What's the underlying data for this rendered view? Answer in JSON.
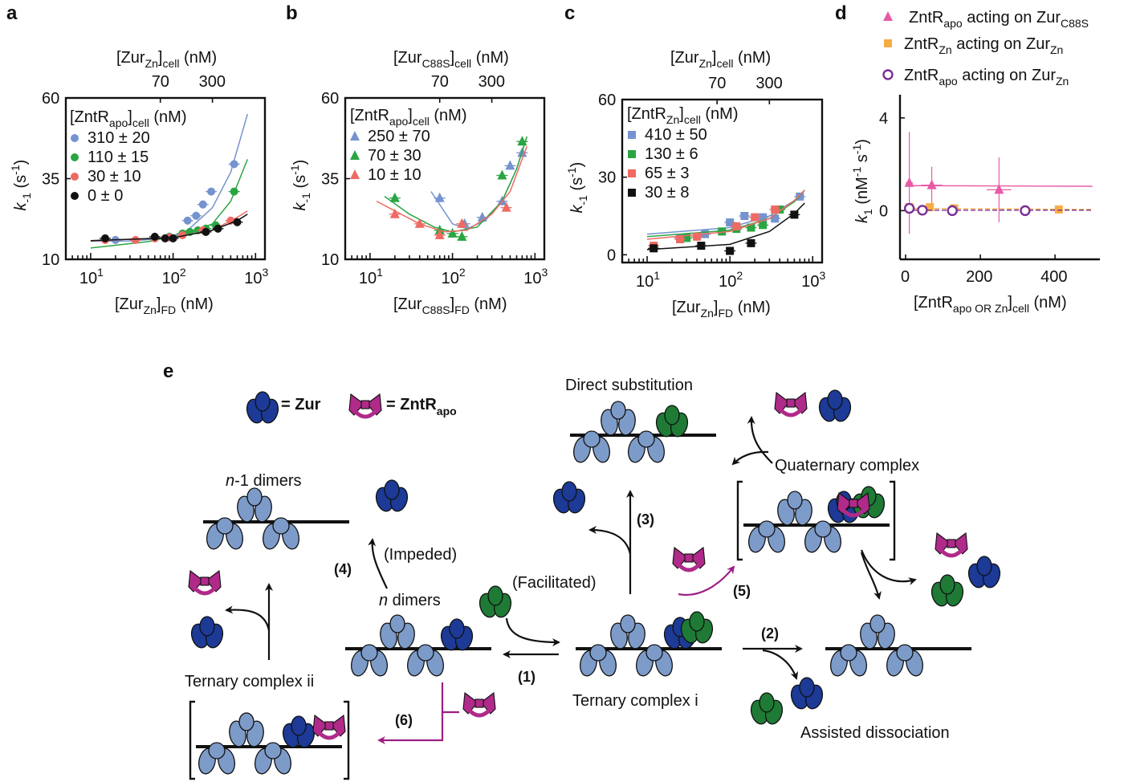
{
  "panel_labels": {
    "a": "a",
    "b": "b",
    "c": "c",
    "d": "d",
    "e": "e"
  },
  "colors": {
    "blue": "#7593cf",
    "green": "#2aa543",
    "red": "#ee6a63",
    "black": "#111111",
    "pink": "#e85aa6",
    "orange": "#f6ac45",
    "purple": "#7b2f96",
    "zur_dark": "#1c3a96",
    "zur_light": "#7d9bc9",
    "zntr": "#b02a8a",
    "zur_green": "#1e7a35"
  },
  "chart_data": [
    {
      "type": "scatter",
      "panel": "a",
      "top_axis_label": "[Zur",
      "top_axis_sub": "Zn",
      "top_axis_sub2": "cell",
      "top_axis_unit": "(nM)",
      "top_ticks": [
        "70",
        "300"
      ],
      "xlabel": "[Zur",
      "xlabel_sub": "Zn",
      "xlabel_sub2": "FD",
      "xlabel_unit": "(nM)",
      "ylabel": "k",
      "ylabel_sub": "-1",
      "ylabel_unit": "(s",
      "ylabel_exp": "-1",
      "xscale": "log",
      "xlim": [
        5,
        1300
      ],
      "ylim": [
        10,
        60
      ],
      "yticks": [
        "10",
        "35",
        "60"
      ],
      "xticks": [
        "1",
        "2",
        "3"
      ],
      "legend_title": "[ZntR",
      "legend_title_sub": "apo",
      "legend_title_sub2": "cell",
      "legend_title_unit": "(nM)",
      "series": [
        {
          "name": "310 ± 20",
          "color": "blue",
          "marker": "circle",
          "points": [
            [
              20,
              16
            ],
            [
              60,
              16.5
            ],
            [
              90,
              17
            ],
            [
              150,
              22
            ],
            [
              190,
              23.5
            ],
            [
              230,
              27
            ],
            [
              290,
              31
            ],
            [
              550,
              39.5
            ]
          ],
          "curve": [
            [
              10,
              15.6
            ],
            [
              30,
              15.7
            ],
            [
              80,
              16.5
            ],
            [
              150,
              19
            ],
            [
              300,
              26
            ],
            [
              500,
              37
            ],
            [
              800,
              55
            ]
          ]
        },
        {
          "name": "110 ± 15",
          "color": "green",
          "marker": "circle",
          "points": [
            [
              90,
              17
            ],
            [
              130,
              18
            ],
            [
              160,
              18.5
            ],
            [
              200,
              19
            ],
            [
              250,
              19.5
            ],
            [
              330,
              20.5
            ],
            [
              550,
              31
            ]
          ],
          "curve": [
            [
              10,
              13.5
            ],
            [
              50,
              15.5
            ],
            [
              150,
              18
            ],
            [
              300,
              21
            ],
            [
              500,
              28
            ],
            [
              800,
              41
            ]
          ]
        },
        {
          "name": "30 ± 10",
          "color": "red",
          "marker": "circle",
          "points": [
            [
              15,
              16
            ],
            [
              35,
              16
            ],
            [
              60,
              16.5
            ],
            [
              90,
              16.8
            ],
            [
              130,
              17.5
            ],
            [
              230,
              19
            ],
            [
              500,
              22
            ]
          ],
          "curve": [
            [
              10,
              15.7
            ],
            [
              100,
              16.8
            ],
            [
              300,
              19
            ],
            [
              600,
              23
            ],
            [
              800,
              25
            ]
          ]
        },
        {
          "name": "0 ± 0",
          "color": "black",
          "marker": "circle",
          "points": [
            [
              15,
              16.5
            ],
            [
              60,
              17
            ],
            [
              80,
              16.5
            ],
            [
              100,
              16.5
            ],
            [
              250,
              18.5
            ],
            [
              350,
              19.5
            ],
            [
              600,
              21.5
            ]
          ],
          "curve": [
            [
              10,
              15.8
            ],
            [
              100,
              16.7
            ],
            [
              300,
              19
            ],
            [
              600,
              22
            ],
            [
              800,
              24
            ]
          ]
        }
      ]
    },
    {
      "type": "scatter",
      "panel": "b",
      "top_axis_label": "[Zur",
      "top_axis_sub": "C88S",
      "top_axis_sub2": "cell",
      "top_axis_unit": "(nM)",
      "top_ticks": [
        "70",
        "300"
      ],
      "xlabel": "[Zur",
      "xlabel_sub": "C88S",
      "xlabel_sub2": "FD",
      "xlabel_unit": "(nM)",
      "ylabel": "k",
      "ylabel_sub": "-1",
      "ylabel_unit": "(s",
      "ylabel_exp": "-1",
      "xscale": "log",
      "xlim": [
        5,
        1300
      ],
      "ylim": [
        10,
        60
      ],
      "yticks": [
        "10",
        "35",
        "60"
      ],
      "xticks": [
        "1",
        "2",
        "3"
      ],
      "legend_title": "[ZntR",
      "legend_title_sub": "apo",
      "legend_title_sub2": "cell",
      "legend_title_unit": "(nM)",
      "series": [
        {
          "name": "250 ± 70",
          "color": "blue",
          "marker": "triangle",
          "points": [
            [
              70,
              29
            ],
            [
              140,
              21
            ],
            [
              230,
              23
            ],
            [
              400,
              28
            ],
            [
              500,
              39
            ],
            [
              700,
              43
            ]
          ],
          "curve": [
            [
              55,
              31
            ],
            [
              100,
              21
            ],
            [
              150,
              19.5
            ],
            [
              250,
              22
            ],
            [
              400,
              28
            ],
            [
              600,
              38
            ],
            [
              800,
              48
            ]
          ]
        },
        {
          "name": "70 ± 30",
          "color": "green",
          "marker": "triangle",
          "points": [
            [
              20,
              29
            ],
            [
              70,
              19
            ],
            [
              100,
              18
            ],
            [
              130,
              17
            ],
            [
              400,
              36
            ],
            [
              700,
              46.5
            ]
          ],
          "curve": [
            [
              15,
              29.5
            ],
            [
              30,
              24
            ],
            [
              60,
              20
            ],
            [
              100,
              18.5
            ],
            [
              200,
              20
            ],
            [
              400,
              28
            ],
            [
              600,
              38
            ],
            [
              800,
              48
            ]
          ]
        },
        {
          "name": "10 ± 10",
          "color": "red",
          "marker": "triangle",
          "points": [
            [
              20,
              24
            ],
            [
              40,
              21
            ],
            [
              70,
              17.5
            ],
            [
              130,
              21
            ],
            [
              450,
              26
            ]
          ],
          "curve": [
            [
              12,
              28
            ],
            [
              20,
              25
            ],
            [
              40,
              21
            ],
            [
              80,
              18.5
            ],
            [
              150,
              19
            ],
            [
              300,
              24
            ],
            [
              500,
              31
            ],
            [
              800,
              45
            ]
          ]
        }
      ]
    },
    {
      "type": "scatter",
      "panel": "c",
      "top_axis_label": "[Zur",
      "top_axis_sub": "Zn",
      "top_axis_sub2": "cell",
      "top_axis_unit": "(nM)",
      "top_ticks": [
        "70",
        "300"
      ],
      "xlabel": "[Zur",
      "xlabel_sub": "Zn",
      "xlabel_sub2": "FD",
      "xlabel_unit": "(nM)",
      "ylabel": "k",
      "ylabel_sub": "-1",
      "ylabel_unit": "(s",
      "ylabel_exp": "-1",
      "xscale": "log",
      "xlim": [
        5,
        1300
      ],
      "ylim": [
        -3,
        60
      ],
      "yticks": [
        "0",
        "30",
        "60"
      ],
      "xticks": [
        "1",
        "2",
        "3"
      ],
      "legend_title": "[ZntR",
      "legend_title_sub": "Zn",
      "legend_title_sub2": "cell",
      "legend_title_unit": "(nM)",
      "series": [
        {
          "name": "410 ± 50",
          "color": "blue",
          "marker": "square",
          "points": [
            [
              25,
              6.5
            ],
            [
              50,
              8
            ],
            [
              100,
              12.5
            ],
            [
              150,
              15
            ],
            [
              250,
              14.5
            ],
            [
              350,
              14
            ],
            [
              700,
              22.5
            ]
          ],
          "curve": [
            [
              10,
              8
            ],
            [
              100,
              10.5
            ],
            [
              300,
              15
            ],
            [
              600,
              21
            ],
            [
              800,
              25
            ]
          ]
        },
        {
          "name": "130 ± 6",
          "color": "green",
          "marker": "square",
          "points": [
            [
              30,
              6.5
            ],
            [
              80,
              9
            ],
            [
              120,
              10
            ],
            [
              180,
              10.5
            ],
            [
              250,
              11.5
            ],
            [
              400,
              17.5
            ]
          ],
          "curve": [
            [
              10,
              7
            ],
            [
              100,
              9.5
            ],
            [
              300,
              14
            ],
            [
              600,
              20.5
            ],
            [
              800,
              25
            ]
          ]
        },
        {
          "name": "65 ± 3",
          "color": "red",
          "marker": "square",
          "points": [
            [
              12,
              3.5
            ],
            [
              25,
              6
            ],
            [
              40,
              7
            ],
            [
              120,
              11
            ],
            [
              200,
              14.5
            ],
            [
              350,
              17.5
            ]
          ],
          "curve": [
            [
              10,
              6
            ],
            [
              100,
              9
            ],
            [
              300,
              14
            ],
            [
              600,
              21
            ],
            [
              800,
              25
            ]
          ]
        },
        {
          "name": "30 ± 8",
          "color": "black",
          "marker": "square",
          "points": [
            [
              12,
              2.5
            ],
            [
              45,
              3.5
            ],
            [
              100,
              1.5
            ],
            [
              180,
              4.5
            ],
            [
              600,
              15.5
            ]
          ],
          "curve": [
            [
              10,
              2
            ],
            [
              100,
              4
            ],
            [
              300,
              9
            ],
            [
              600,
              16
            ],
            [
              800,
              20
            ]
          ]
        }
      ]
    },
    {
      "type": "scatter",
      "panel": "d",
      "xlabel": "[ZntR",
      "xlabel_sub": "apo OR Zn",
      "xlabel_sub2": "cell",
      "xlabel_unit": "(nM)",
      "ylabel": "k",
      "ylabel_sub": "1",
      "ylabel_unit": "(nM",
      "ylabel_exp": "-1",
      "ylabel_unit2": "s",
      "ylabel_exp2": "-1",
      "xlim": [
        -15,
        520
      ],
      "ylim": [
        -2.1,
        5
      ],
      "xticks": [
        "0",
        "200",
        "400"
      ],
      "yticks": [
        "0",
        "4"
      ],
      "series": [
        {
          "name": "ZntR",
          "name_sub": "apo",
          "name_mid": "acting on Zur",
          "name_sub2": "C88S",
          "color": "pink",
          "marker": "triangle",
          "points": [
            [
              10,
              1.2
            ],
            [
              70,
              1.1
            ],
            [
              250,
              0.9
            ]
          ],
          "fit": [
            [
              0,
              1.08
            ],
            [
              500,
              1.05
            ]
          ]
        },
        {
          "name": "ZntR",
          "name_sub": "Zn",
          "name_mid": "acting on Zur",
          "name_sub2": "Zn",
          "color": "orange",
          "marker": "square",
          "points": [
            [
              10,
              0.15
            ],
            [
              65,
              0.15
            ],
            [
              130,
              0.1
            ],
            [
              410,
              0.05
            ]
          ],
          "fit": [
            [
              0,
              0.1
            ],
            [
              500,
              0.05
            ]
          ]
        },
        {
          "name": "ZntR",
          "name_sub": "apo",
          "name_mid": "acting on Zur",
          "name_sub2": "Zn",
          "color": "purple",
          "marker": "open-circle",
          "points": [
            [
              10,
              0.1
            ],
            [
              45,
              0.02
            ],
            [
              125,
              0
            ],
            [
              320,
              0
            ]
          ],
          "fit": [
            [
              0,
              0.02
            ],
            [
              500,
              0.02
            ]
          ]
        }
      ]
    }
  ],
  "scheme": {
    "legend_zur": "= Zur",
    "legend_zntr": "= ZntR",
    "legend_zntr_sub": "apo",
    "n_minus_1_dimers": "-1 dimers",
    "n_italic": "n",
    "n_dimers": " dimers",
    "impeded": "(Impeded)",
    "facilitated": "(Facilitated)",
    "direct_substitution": "Direct substitution",
    "quaternary_complex": "Quaternary complex",
    "ternary_complex_i": "Ternary complex i",
    "ternary_complex_ii": "Ternary complex ii",
    "assisted_dissociation": "Assisted dissociation",
    "step1": "(1)",
    "step2": "(2)",
    "step3": "(3)",
    "step4": "(4)",
    "step5": "(5)",
    "step6": "(6)"
  }
}
